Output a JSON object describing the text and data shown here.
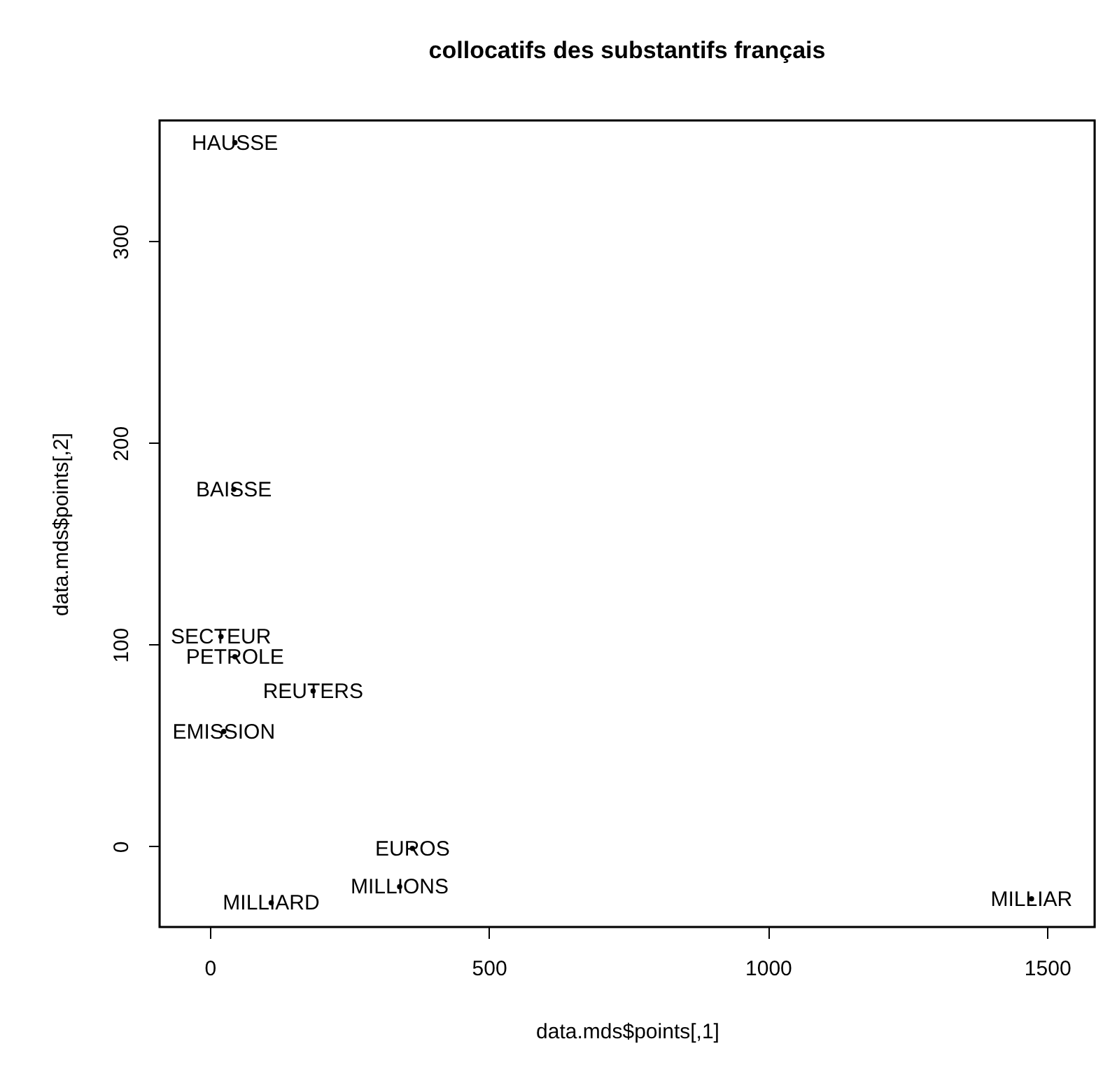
{
  "chart_data": {
    "type": "scatter",
    "title": "collocatifs des substantifs français",
    "xlabel": "data.mds$points[,1]",
    "ylabel": "data.mds$points[,2]",
    "x": [
      45,
      43,
      20,
      45,
      185,
      25,
      363,
      340,
      110,
      1472
    ],
    "values": [
      349,
      177,
      104,
      94,
      77,
      57,
      -1,
      -20,
      -28,
      -26
    ],
    "value_labels": [
      "HAUSSE",
      "BAISSE",
      "SECTEUR",
      "PETROLE",
      "REUTERS",
      "EMISSION",
      "EUROS",
      "MILLIONS",
      "MILLIARD",
      "MILLIAR"
    ],
    "color": "#000000",
    "marker": "circle",
    "grid": false,
    "xlim": [
      -90,
      1585
    ],
    "xticks": [
      0,
      500,
      1000,
      1500
    ],
    "ylim": [
      -40,
      360
    ],
    "yticks": [
      0,
      100,
      200,
      300
    ]
  }
}
